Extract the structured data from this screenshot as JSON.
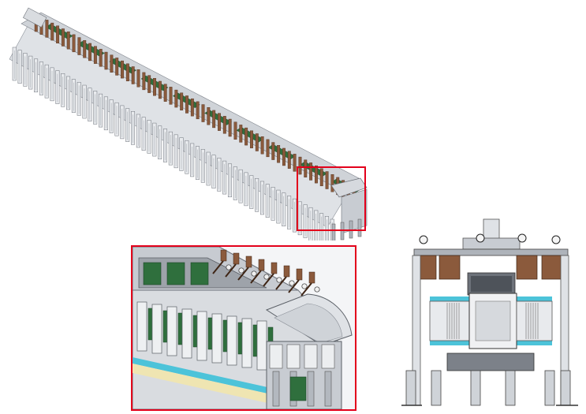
{
  "figure": {
    "panels": [
      {
        "id": "isometric-overview",
        "kind": "isometric CAD rendering"
      },
      {
        "id": "zoom-detail",
        "kind": "magnified view of highlighted end"
      },
      {
        "id": "end-view",
        "kind": "orthographic front/end view"
      }
    ],
    "colors": {
      "highlight": "#e3001b",
      "frame_grey": "#b8bcc4",
      "dark_grey": "#6d727a",
      "light_grey": "#dfe2e6",
      "copper": "#8b5a3c",
      "circuit_green": "#2f6f3d",
      "cyan": "#4cc3d9",
      "cream": "#efe5b2"
    },
    "counts": {
      "modules_along_length": 60,
      "zoom_modules": 9
    }
  }
}
